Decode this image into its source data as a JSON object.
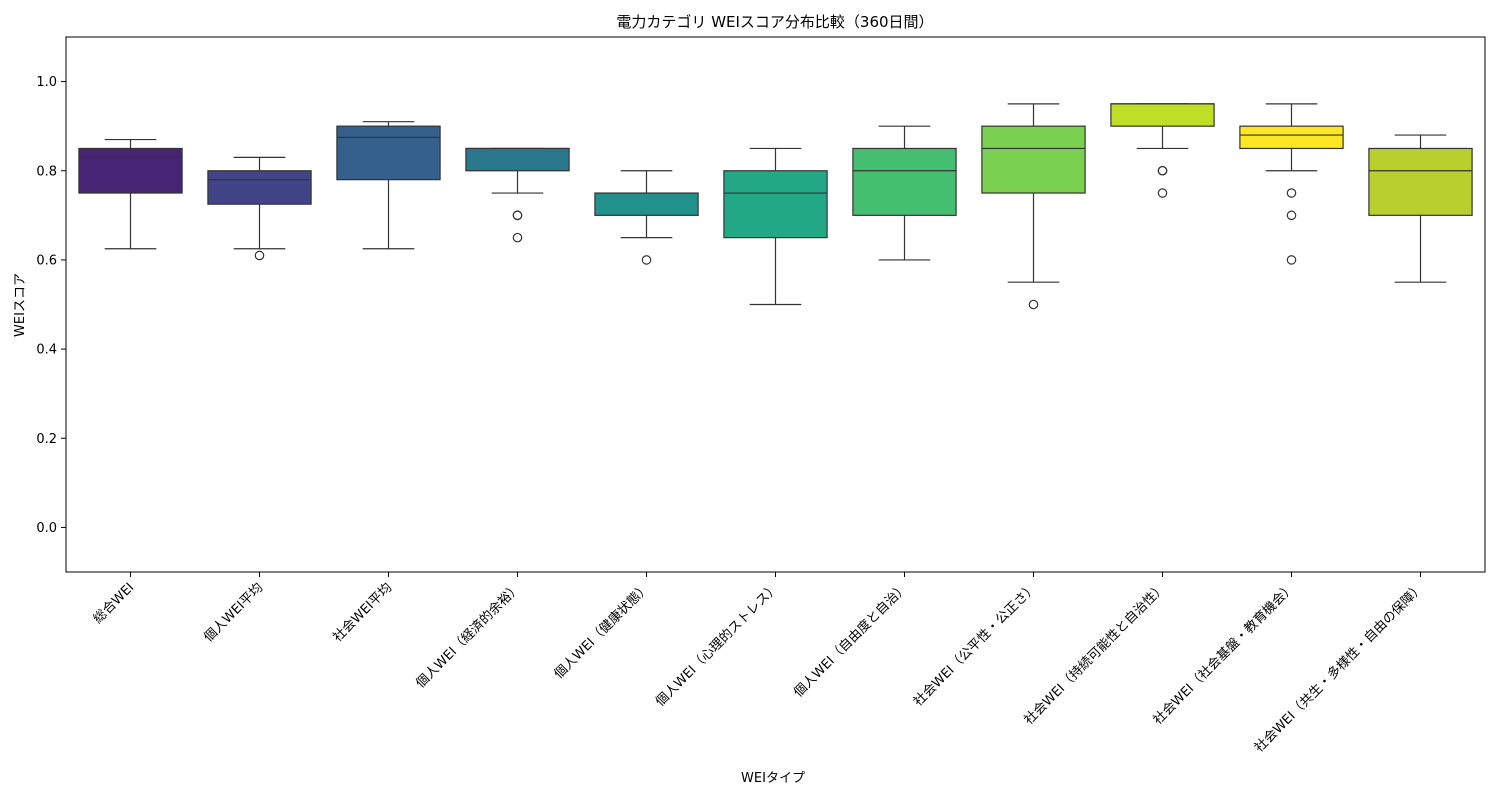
{
  "chart_data": {
    "type": "boxplot",
    "title": "電力カテゴリ WEIスコア分布比較（360日間）",
    "xlabel": "WEIタイプ",
    "ylabel": "WEIスコア",
    "ylim": [
      -0.1,
      1.1
    ],
    "yticks": [
      0.0,
      0.2,
      0.4,
      0.6,
      0.8,
      1.0
    ],
    "ytick_labels": [
      "0.0",
      "0.2",
      "0.4",
      "0.6",
      "0.8",
      "1.0"
    ],
    "grid": false,
    "categories": [
      "総合WEI",
      "個人WEI平均",
      "社会WEI平均",
      "個人WEI（経済的余裕）",
      "個人WEI（健康状態）",
      "個人WEI（心理的ストレス）",
      "個人WEI（自由度と自治）",
      "社会WEI（公平性・公正さ）",
      "社会WEI（持続可能性と自治性）",
      "社会WEI（社会基盤・教育機会）",
      "社会WEI（共生・多様性・自由の保障）"
    ],
    "colors": [
      "#482475",
      "#414487",
      "#355f8d",
      "#2a788e",
      "#21918c",
      "#22a884",
      "#44bf70",
      "#7ad151",
      "#bddf26",
      "#fde725",
      "#b9cf2e"
    ],
    "boxes": [
      {
        "whislo": 0.625,
        "q1": 0.75,
        "median": 0.83,
        "q3": 0.85,
        "whishi": 0.87,
        "fliers": []
      },
      {
        "whislo": 0.625,
        "q1": 0.725,
        "median": 0.78,
        "q3": 0.8,
        "whishi": 0.83,
        "fliers": [
          0.61
        ]
      },
      {
        "whislo": 0.625,
        "q1": 0.78,
        "median": 0.875,
        "q3": 0.9,
        "whishi": 0.91,
        "fliers": []
      },
      {
        "whislo": 0.75,
        "q1": 0.8,
        "median": 0.85,
        "q3": 0.85,
        "whishi": 0.85,
        "fliers": [
          0.7,
          0.7,
          0.65
        ]
      },
      {
        "whislo": 0.65,
        "q1": 0.7,
        "median": 0.75,
        "q3": 0.75,
        "whishi": 0.8,
        "fliers": [
          0.6
        ]
      },
      {
        "whislo": 0.5,
        "q1": 0.65,
        "median": 0.75,
        "q3": 0.8,
        "whishi": 0.85,
        "fliers": []
      },
      {
        "whislo": 0.6,
        "q1": 0.7,
        "median": 0.8,
        "q3": 0.85,
        "whishi": 0.9,
        "fliers": []
      },
      {
        "whislo": 0.55,
        "q1": 0.75,
        "median": 0.85,
        "q3": 0.9,
        "whishi": 0.95,
        "fliers": [
          0.5
        ]
      },
      {
        "whislo": 0.85,
        "q1": 0.9,
        "median": 0.95,
        "q3": 0.95,
        "whishi": 0.95,
        "fliers": [
          0.8,
          0.8,
          0.75
        ]
      },
      {
        "whislo": 0.8,
        "q1": 0.85,
        "median": 0.88,
        "q3": 0.9,
        "whishi": 0.95,
        "fliers": [
          0.75,
          0.7,
          0.6
        ]
      },
      {
        "whislo": 0.55,
        "q1": 0.7,
        "median": 0.8,
        "q3": 0.85,
        "whishi": 0.88,
        "fliers": []
      }
    ]
  }
}
